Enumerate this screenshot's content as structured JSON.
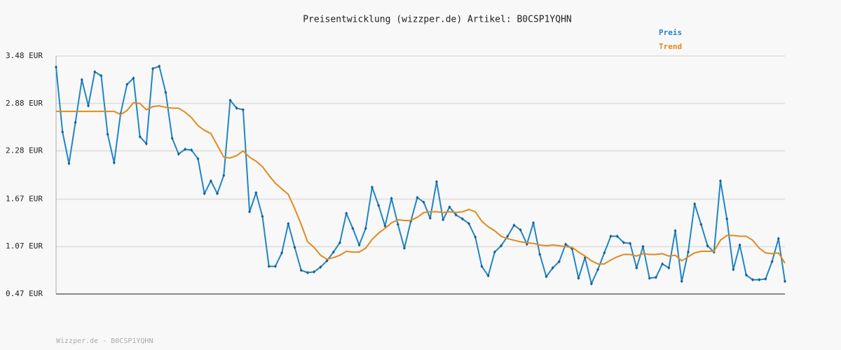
{
  "chart_data": {
    "type": "line",
    "title": "Preisentwicklung (wizzper.de) Artikel: B0CSP1YQHN",
    "ylim": [
      0.47,
      3.48
    ],
    "yticks": [
      {
        "value": 0.47,
        "label": "0.47 EUR"
      },
      {
        "value": 1.07,
        "label": "1.07 EUR"
      },
      {
        "value": 1.67,
        "label": "1.67 EUR"
      },
      {
        "value": 2.28,
        "label": "2.28 EUR"
      },
      {
        "value": 2.88,
        "label": "2.88 EUR"
      },
      {
        "value": 3.48,
        "label": "3.48 EUR"
      }
    ],
    "grid": true,
    "legend": "top-right",
    "series": [
      {
        "name": "Preis",
        "color": "#1f86c4",
        "markers": true,
        "values": [
          3.34,
          2.52,
          2.12,
          2.64,
          3.18,
          2.85,
          3.28,
          3.23,
          2.49,
          2.13,
          2.75,
          3.12,
          3.2,
          2.46,
          2.37,
          3.32,
          3.35,
          3.02,
          2.44,
          2.24,
          2.3,
          2.29,
          2.18,
          1.74,
          1.9,
          1.74,
          1.97,
          2.92,
          2.82,
          2.8,
          1.51,
          1.75,
          1.45,
          0.82,
          0.82,
          0.99,
          1.36,
          1.06,
          0.77,
          0.74,
          0.75,
          0.81,
          0.89,
          1.0,
          1.12,
          1.49,
          1.3,
          1.09,
          1.3,
          1.82,
          1.59,
          1.33,
          1.68,
          1.35,
          1.05,
          1.39,
          1.69,
          1.63,
          1.43,
          1.89,
          1.41,
          1.57,
          1.47,
          1.42,
          1.36,
          1.19,
          0.82,
          0.7,
          1.0,
          1.08,
          1.2,
          1.34,
          1.28,
          1.1,
          1.37,
          0.97,
          0.69,
          0.8,
          0.88,
          1.1,
          1.04,
          0.67,
          0.93,
          0.6,
          0.78,
          0.99,
          1.2,
          1.2,
          1.12,
          1.11,
          0.8,
          1.07,
          0.67,
          0.68,
          0.85,
          0.8,
          1.27,
          0.63,
          1.0,
          1.61,
          1.35,
          1.08,
          1.0,
          1.9,
          1.42,
          0.78,
          1.09,
          0.71,
          0.65,
          0.65,
          0.66,
          0.88,
          1.17,
          0.63
        ]
      },
      {
        "name": "Trend",
        "color": "#e08a1e",
        "markers": false,
        "values": [
          2.78,
          2.78,
          2.78,
          2.78,
          2.78,
          2.78,
          2.78,
          2.78,
          2.78,
          2.78,
          2.74,
          2.79,
          2.89,
          2.88,
          2.8,
          2.84,
          2.85,
          2.83,
          2.82,
          2.82,
          2.77,
          2.7,
          2.6,
          2.54,
          2.5,
          2.35,
          2.2,
          2.19,
          2.22,
          2.28,
          2.2,
          2.15,
          2.08,
          1.97,
          1.87,
          1.8,
          1.73,
          1.55,
          1.35,
          1.13,
          1.06,
          0.96,
          0.91,
          0.93,
          0.96,
          1.01,
          1.0,
          1.0,
          1.05,
          1.16,
          1.24,
          1.3,
          1.37,
          1.41,
          1.4,
          1.4,
          1.44,
          1.5,
          1.51,
          1.51,
          1.5,
          1.51,
          1.5,
          1.51,
          1.54,
          1.51,
          1.39,
          1.32,
          1.27,
          1.2,
          1.17,
          1.15,
          1.13,
          1.12,
          1.11,
          1.09,
          1.08,
          1.09,
          1.08,
          1.07,
          1.06,
          1.0,
          0.95,
          0.89,
          0.85,
          0.85,
          0.9,
          0.94,
          0.97,
          0.97,
          0.95,
          0.98,
          0.97,
          0.97,
          0.98,
          0.95,
          0.96,
          0.89,
          0.94,
          0.99,
          1.01,
          1.01,
          1.01,
          1.15,
          1.21,
          1.21,
          1.2,
          1.2,
          1.15,
          1.05,
          0.99,
          0.98,
          0.99,
          0.86
        ]
      }
    ]
  },
  "footer": "Wizzper.de - B0CSP1YQHN"
}
